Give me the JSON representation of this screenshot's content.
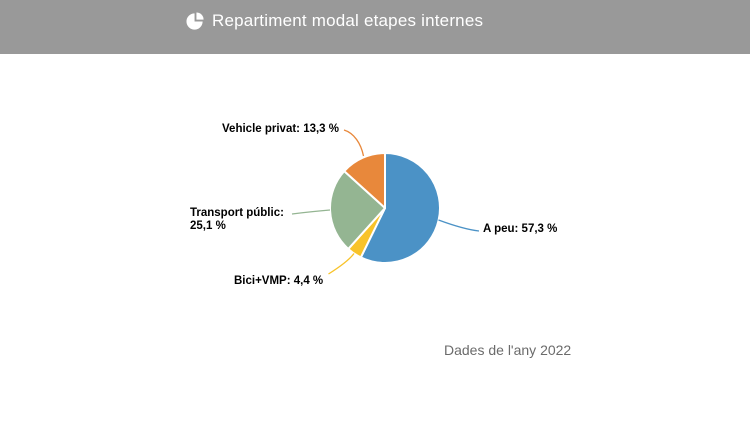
{
  "header": {
    "title": "Repartiment modal etapes internes",
    "icon": "pie-chart-icon",
    "background_color": "#999999",
    "text_color": "#ffffff"
  },
  "caption": {
    "text": "Dades de l'any 2022",
    "color": "#6b6b6b"
  },
  "chart_data": {
    "type": "pie",
    "title": "Repartiment modal etapes internes",
    "caption": "Dades de l'any 2022",
    "value_unit": "%",
    "decimal_separator": ",",
    "start_angle_deg": 0,
    "direction": "clockwise",
    "legend": "off",
    "slice_border_color": "#ffffff",
    "label_text_color": "#000000",
    "background": "#ffffff",
    "slices": [
      {
        "name": "A peu",
        "value": 57.3,
        "display_label": "A peu: 57,3 %",
        "color": "#4B92C6"
      },
      {
        "name": "Bici+VMP",
        "value": 4.4,
        "display_label": "Bici+VMP: 4,4 %",
        "color": "#F8C32A"
      },
      {
        "name": "Transport públic",
        "value": 25.1,
        "display_label": "Transport públic: 25,1 %",
        "color": "#94B592"
      },
      {
        "name": "Vehicle privat",
        "value": 13.3,
        "display_label": "Vehicle privat: 13,3 %",
        "color": "#E8883B"
      }
    ]
  }
}
